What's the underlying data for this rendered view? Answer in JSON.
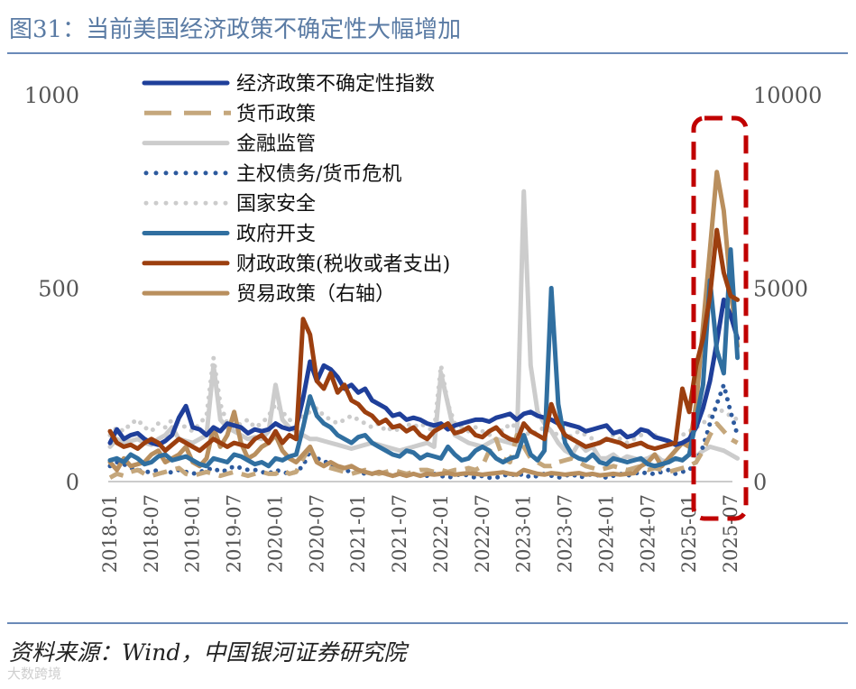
{
  "header": {
    "title": "图31：当前美国经济政策不确定性大幅增加"
  },
  "footer": {
    "source": "资料来源：Wind，中国银河证券研究院",
    "watermark": "大数跨境"
  },
  "chart_data": {
    "type": "line",
    "title": "当前美国经济政策不确定性大幅增加",
    "ylim_left": [
      0,
      1000
    ],
    "ylim_right": [
      0,
      10000
    ],
    "yticks_left": [
      "1000",
      "500",
      "0"
    ],
    "yticks_right": [
      "10000",
      "5000",
      "0"
    ],
    "xticks": [
      "2018-01",
      "2018-07",
      "2019-01",
      "2019-07",
      "2020-01",
      "2020-07",
      "2021-01",
      "2021-07",
      "2022-01",
      "2022-07",
      "2023-01",
      "2023-07",
      "2024-01",
      "2024-07",
      "2025-01",
      "2025-07"
    ],
    "x_months": 91,
    "series": [
      {
        "name": "经济政策不确定性指数",
        "color": "#1f3f9a",
        "style": "solid",
        "width": 5,
        "axis": "left",
        "values": [
          100,
          135,
          110,
          120,
          125,
          110,
          100,
          95,
          105,
          120,
          165,
          195,
          140,
          135,
          120,
          140,
          130,
          150,
          145,
          140,
          125,
          135,
          130,
          135,
          150,
          140,
          135,
          140,
          215,
          310,
          260,
          300,
          290,
          270,
          240,
          250,
          230,
          240,
          210,
          200,
          190,
          170,
          175,
          160,
          165,
          160,
          150,
          145,
          150,
          135,
          145,
          150,
          155,
          160,
          160,
          155,
          165,
          170,
          175,
          160,
          175,
          180,
          170,
          165,
          160,
          150,
          150,
          145,
          140,
          130,
          135,
          140,
          145,
          125,
          130,
          115,
          120,
          135,
          130,
          115,
          110,
          105,
          95,
          100,
          110,
          140,
          190,
          260,
          360,
          470,
          430,
          370
        ]
      },
      {
        "name": "货币政策",
        "color": "#c5a77c",
        "style": "dashed",
        "width": 5,
        "axis": "left",
        "values": [
          10,
          20,
          15,
          25,
          30,
          20,
          15,
          20,
          25,
          30,
          35,
          20,
          15,
          20,
          25,
          20,
          15,
          20,
          25,
          20,
          15,
          20,
          25,
          20,
          20,
          30,
          20,
          25,
          60,
          90,
          50,
          40,
          35,
          30,
          25,
          20,
          25,
          30,
          25,
          20,
          25,
          30,
          25,
          20,
          25,
          30,
          30,
          25,
          30,
          25,
          30,
          30,
          35,
          30,
          40,
          80,
          110,
          60,
          50,
          120,
          90,
          60,
          50,
          40,
          40,
          50,
          55,
          60,
          50,
          40,
          35,
          30,
          35,
          40,
          35,
          30,
          35,
          40,
          30,
          35,
          30,
          25,
          30,
          35,
          40,
          50,
          80,
          120,
          150,
          130,
          110,
          100
        ]
      },
      {
        "name": "金融监管",
        "color": "#cccccc",
        "style": "solid",
        "width": 5,
        "axis": "left",
        "values": [
          90,
          110,
          100,
          105,
          110,
          100,
          95,
          110,
          120,
          140,
          110,
          105,
          100,
          110,
          120,
          300,
          160,
          140,
          130,
          120,
          110,
          115,
          110,
          130,
          250,
          160,
          140,
          130,
          120,
          110,
          110,
          105,
          100,
          95,
          90,
          85,
          90,
          95,
          100,
          95,
          90,
          85,
          80,
          85,
          90,
          95,
          100,
          90,
          280,
          200,
          120,
          110,
          100,
          95,
          90,
          100,
          110,
          105,
          100,
          95,
          750,
          300,
          180,
          150,
          130,
          100,
          80,
          70,
          100,
          80,
          90,
          60,
          60,
          70,
          55,
          65,
          60,
          55,
          60,
          70,
          55,
          50,
          60,
          55,
          70,
          65,
          80,
          90,
          85,
          80,
          70,
          60
        ]
      },
      {
        "name": "主权债务/货币危机",
        "color": "#2d5a9e",
        "style": "dotted",
        "width": 5,
        "axis": "left",
        "values": [
          40,
          50,
          45,
          35,
          30,
          25,
          25,
          30,
          20,
          25,
          30,
          25,
          20,
          25,
          30,
          35,
          25,
          30,
          40,
          35,
          30,
          30,
          25,
          20,
          30,
          25,
          20,
          25,
          40,
          80,
          60,
          55,
          40,
          35,
          30,
          25,
          25,
          20,
          20,
          25,
          20,
          15,
          20,
          15,
          20,
          15,
          15,
          20,
          15,
          10,
          15,
          20,
          15,
          10,
          15,
          10,
          10,
          15,
          20,
          15,
          20,
          10,
          15,
          20,
          15,
          10,
          15,
          20,
          10,
          15,
          20,
          15,
          10,
          15,
          20,
          15,
          20,
          25,
          20,
          20,
          25,
          30,
          20,
          25,
          30,
          50,
          90,
          150,
          200,
          250,
          180,
          120
        ]
      },
      {
        "name": "国家安全",
        "color": "#cccccc",
        "style": "dotted",
        "width": 5,
        "axis": "left",
        "values": [
          120,
          140,
          130,
          150,
          160,
          140,
          130,
          150,
          140,
          160,
          150,
          140,
          130,
          150,
          170,
          320,
          200,
          150,
          140,
          150,
          160,
          140,
          150,
          170,
          200,
          180,
          160,
          150,
          170,
          180,
          190,
          170,
          160,
          150,
          160,
          170,
          160,
          150,
          140,
          150,
          130,
          140,
          130,
          150,
          140,
          150,
          140,
          130,
          300,
          200,
          150,
          140,
          130,
          140,
          130,
          120,
          140,
          130,
          150,
          140,
          130,
          120,
          130,
          140,
          130,
          120,
          110,
          120,
          130,
          120,
          110,
          100,
          110,
          120,
          110,
          100,
          110,
          120,
          130,
          120,
          110,
          100,
          110,
          120,
          130,
          140,
          150,
          170,
          190,
          180,
          170,
          160
        ]
      },
      {
        "name": "政府开支",
        "color": "#306fa0",
        "style": "solid",
        "width": 5,
        "axis": "left",
        "values": [
          55,
          60,
          50,
          70,
          60,
          45,
          50,
          65,
          70,
          55,
          60,
          65,
          55,
          45,
          40,
          60,
          55,
          50,
          70,
          65,
          55,
          45,
          50,
          40,
          60,
          55,
          65,
          70,
          140,
          220,
          170,
          150,
          140,
          120,
          110,
          100,
          115,
          120,
          100,
          90,
          80,
          70,
          65,
          80,
          75,
          60,
          70,
          65,
          60,
          90,
          70,
          55,
          60,
          80,
          90,
          80,
          60,
          50,
          60,
          65,
          120,
          70,
          55,
          80,
          500,
          200,
          100,
          70,
          60,
          55,
          70,
          50,
          45,
          60,
          55,
          50,
          55,
          60,
          45,
          40,
          45,
          50,
          60,
          55,
          70,
          160,
          250,
          520,
          340,
          280,
          600,
          320
        ]
      },
      {
        "name": "财政政策(税收或者支出)",
        "color": "#9c3f0f",
        "style": "solid",
        "width": 5,
        "axis": "left",
        "values": [
          130,
          100,
          90,
          95,
          85,
          100,
          110,
          100,
          80,
          95,
          110,
          100,
          90,
          80,
          95,
          110,
          100,
          90,
          100,
          95,
          90,
          110,
          120,
          100,
          130,
          100,
          120,
          110,
          420,
          380,
          260,
          240,
          280,
          230,
          250,
          210,
          200,
          180,
          170,
          150,
          160,
          140,
          145,
          130,
          140,
          120,
          110,
          130,
          140,
          150,
          125,
          130,
          140,
          120,
          115,
          130,
          140,
          120,
          110,
          105,
          150,
          130,
          120,
          110,
          200,
          150,
          120,
          110,
          100,
          90,
          95,
          100,
          110,
          105,
          100,
          90,
          95,
          100,
          90,
          85,
          90,
          95,
          100,
          240,
          180,
          300,
          370,
          480,
          650,
          540,
          480,
          470
        ]
      },
      {
        "name": "贸易政策（右轴）",
        "color": "#b98f5e",
        "style": "solid",
        "width": 5,
        "axis": "right",
        "values": [
          500,
          300,
          600,
          400,
          450,
          500,
          700,
          800,
          500,
          600,
          700,
          900,
          500,
          400,
          600,
          1400,
          900,
          1200,
          1800,
          1000,
          600,
          700,
          900,
          1000,
          1200,
          800,
          600,
          500,
          700,
          900,
          500,
          400,
          500,
          400,
          350,
          400,
          300,
          250,
          200,
          250,
          200,
          150,
          200,
          150,
          200,
          150,
          200,
          180,
          200,
          220,
          180,
          200,
          220,
          200,
          180,
          200,
          220,
          240,
          200,
          180,
          300,
          250,
          200,
          180,
          220,
          200,
          180,
          200,
          220,
          180,
          200,
          160,
          180,
          200,
          180,
          200,
          220,
          400,
          500,
          700,
          400,
          600,
          800,
          1000,
          900,
          2000,
          4000,
          6000,
          8000,
          7000,
          5000,
          3500
        ]
      }
    ]
  }
}
